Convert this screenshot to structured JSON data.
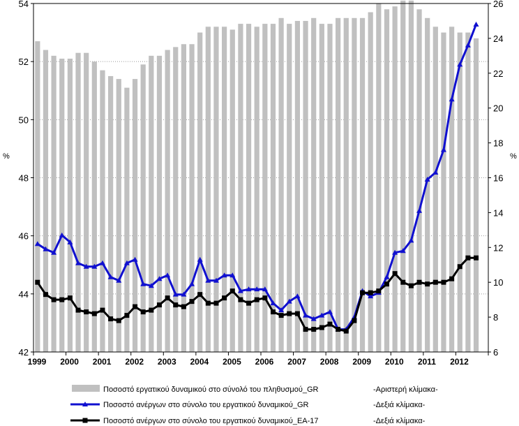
{
  "chart_data": {
    "type": "bar+line",
    "x_labels": [
      "1999",
      "2000",
      "2001",
      "2002",
      "2003",
      "2004",
      "2005",
      "2006",
      "2007",
      "2008",
      "2009",
      "2010",
      "2011",
      "2012"
    ],
    "left_axis": {
      "ylim": [
        42,
        54
      ],
      "ticks": [
        42,
        44,
        46,
        48,
        50,
        52,
        54
      ],
      "unit_label": "%"
    },
    "right_axis": {
      "ylim": [
        6,
        26
      ],
      "ticks": [
        6,
        8,
        10,
        12,
        14,
        16,
        18,
        20,
        22,
        24,
        26
      ],
      "unit_label": "%"
    },
    "grid": "left-axis dotted horizontal lines",
    "quarters_per_year": 4,
    "series": [
      {
        "name": "Ποσοστό εργατικού δυναμικού στο σύνολό του πληθυσμού_GR",
        "axis_note": "-Αριστερή κλίμακα-",
        "type": "bar",
        "axis": "left",
        "color": "#c0c0c0",
        "values": [
          52.7,
          52.4,
          52.2,
          52.1,
          52.1,
          52.3,
          52.3,
          52.0,
          51.7,
          51.5,
          51.4,
          51.1,
          51.4,
          51.9,
          52.2,
          52.2,
          52.4,
          52.5,
          52.6,
          52.6,
          53.0,
          53.2,
          53.2,
          53.2,
          53.1,
          53.3,
          53.3,
          53.2,
          53.3,
          53.3,
          53.5,
          53.3,
          53.4,
          53.4,
          53.5,
          53.3,
          53.3,
          53.5,
          53.5,
          53.5,
          53.5,
          53.7,
          54.0,
          53.8,
          53.9,
          54.1,
          54.1,
          53.8,
          53.5,
          53.2,
          53.0,
          53.2,
          53.0,
          53.0,
          52.8
        ]
      },
      {
        "name": "Ποσοστό ανέργων στο σύνολο του εργατικού δυναμικού_GR",
        "axis_note": "-Δεξιά κλίμακα-",
        "type": "line",
        "axis": "right",
        "color": "#1010d0",
        "marker": "triangle",
        "values": [
          12.2,
          11.9,
          11.7,
          12.7,
          12.3,
          11.1,
          10.9,
          10.9,
          11.1,
          10.3,
          10.1,
          11.1,
          11.3,
          9.9,
          9.8,
          10.2,
          10.4,
          9.3,
          9.3,
          9.9,
          11.3,
          10.1,
          10.1,
          10.4,
          10.4,
          9.5,
          9.6,
          9.6,
          9.6,
          8.8,
          8.4,
          8.9,
          9.2,
          8.1,
          7.9,
          8.1,
          8.3,
          7.3,
          7.3,
          8.0,
          9.5,
          9.2,
          9.4,
          10.3,
          11.7,
          11.8,
          12.4,
          14.1,
          15.9,
          16.3,
          17.6,
          20.5,
          22.5,
          23.6,
          24.8
        ]
      },
      {
        "name": "Ποσοστό ανέργων στο σύνολο του εργατικού δυναμικού_ΕΑ-17",
        "axis_note": "-Δεξιά κλίμακα-",
        "type": "line",
        "axis": "right",
        "color": "#000000",
        "marker": "square",
        "values": [
          10.0,
          9.3,
          9.0,
          9.0,
          9.1,
          8.4,
          8.3,
          8.2,
          8.4,
          7.9,
          7.8,
          8.1,
          8.6,
          8.3,
          8.4,
          8.7,
          9.1,
          8.7,
          8.6,
          8.9,
          9.3,
          8.8,
          8.8,
          9.1,
          9.5,
          9.0,
          8.8,
          9.0,
          9.1,
          8.3,
          8.1,
          8.2,
          8.2,
          7.3,
          7.3,
          7.4,
          7.6,
          7.3,
          7.2,
          7.8,
          9.4,
          9.4,
          9.5,
          9.9,
          10.5,
          10.0,
          9.8,
          10.0,
          9.9,
          10.0,
          10.0,
          10.2,
          10.9,
          11.4,
          11.4
        ]
      }
    ]
  }
}
